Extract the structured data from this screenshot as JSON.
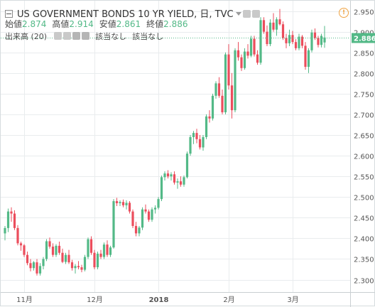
{
  "header": {
    "symbol": "US GOVERNMENT BONDS 10 YR YIELD, 日, TVC",
    "ohlc": [
      {
        "label": "始値",
        "value": "2.874"
      },
      {
        "label": "高値",
        "value": "2.914"
      },
      {
        "label": "安値",
        "value": "2.861"
      },
      {
        "label": "終値",
        "value": "2.886"
      }
    ],
    "volume_label": "出来高 (20)",
    "na1": "該当なし",
    "na2": "該当なし",
    "warning_icon": "!"
  },
  "colors": {
    "up": "#53b987",
    "down": "#eb4d5c",
    "grid": "#e9ecee",
    "last_price_line": "#53b987"
  },
  "chart_data": {
    "type": "candlestick",
    "title": "US GOVERNMENT BONDS 10 YR YIELD, 日, TVC",
    "y_ticks": [
      "2.300",
      "2.350",
      "2.400",
      "2.450",
      "2.500",
      "2.550",
      "2.600",
      "2.650",
      "2.700",
      "2.750",
      "2.800",
      "2.850",
      "2.900",
      "2.950"
    ],
    "x_ticks": [
      {
        "label": "11月",
        "index": 6
      },
      {
        "label": "12月",
        "index": 28
      },
      {
        "label": "2018",
        "index": 48
      },
      {
        "label": "2月",
        "index": 70
      },
      {
        "label": "3月",
        "index": 90
      }
    ],
    "last_value": "2.886",
    "ylim": [
      2.27,
      2.975
    ],
    "candles": [
      [
        2.412,
        2.43,
        2.395,
        2.425
      ],
      [
        2.425,
        2.472,
        2.415,
        2.465
      ],
      [
        2.465,
        2.475,
        2.44,
        2.46
      ],
      [
        2.46,
        2.468,
        2.42,
        2.425
      ],
      [
        2.425,
        2.432,
        2.383,
        2.388
      ],
      [
        2.388,
        2.392,
        2.37,
        2.383
      ],
      [
        2.383,
        2.386,
        2.355,
        2.36
      ],
      [
        2.36,
        2.368,
        2.335,
        2.34
      ],
      [
        2.34,
        2.35,
        2.32,
        2.328
      ],
      [
        2.328,
        2.345,
        2.322,
        2.342
      ],
      [
        2.342,
        2.35,
        2.31,
        2.315
      ],
      [
        2.315,
        2.34,
        2.31,
        2.333
      ],
      [
        2.333,
        2.355,
        2.325,
        2.35
      ],
      [
        2.35,
        2.398,
        2.345,
        2.393
      ],
      [
        2.393,
        2.402,
        2.375,
        2.38
      ],
      [
        2.38,
        2.388,
        2.355,
        2.36
      ],
      [
        2.36,
        2.386,
        2.355,
        2.382
      ],
      [
        2.382,
        2.392,
        2.36,
        2.365
      ],
      [
        2.365,
        2.375,
        2.34,
        2.343
      ],
      [
        2.343,
        2.365,
        2.338,
        2.36
      ],
      [
        2.36,
        2.372,
        2.338,
        2.342
      ],
      [
        2.342,
        2.348,
        2.322,
        2.328
      ],
      [
        2.328,
        2.338,
        2.315,
        2.333
      ],
      [
        2.333,
        2.345,
        2.325,
        2.33
      ],
      [
        2.33,
        2.336,
        2.318,
        2.324
      ],
      [
        2.324,
        2.36,
        2.32,
        2.355
      ],
      [
        2.355,
        2.402,
        2.35,
        2.398
      ],
      [
        2.398,
        2.405,
        2.36,
        2.365
      ],
      [
        2.365,
        2.372,
        2.325,
        2.33
      ],
      [
        2.33,
        2.368,
        2.325,
        2.363
      ],
      [
        2.363,
        2.372,
        2.35,
        2.355
      ],
      [
        2.355,
        2.39,
        2.35,
        2.385
      ],
      [
        2.385,
        2.395,
        2.355,
        2.36
      ],
      [
        2.36,
        2.382,
        2.355,
        2.378
      ],
      [
        2.378,
        2.495,
        2.375,
        2.49
      ],
      [
        2.49,
        2.498,
        2.478,
        2.485
      ],
      [
        2.485,
        2.492,
        2.478,
        2.488
      ],
      [
        2.488,
        2.494,
        2.475,
        2.48
      ],
      [
        2.48,
        2.492,
        2.47,
        2.486
      ],
      [
        2.486,
        2.49,
        2.46,
        2.465
      ],
      [
        2.465,
        2.47,
        2.425,
        2.43
      ],
      [
        2.43,
        2.44,
        2.405,
        2.412
      ],
      [
        2.412,
        2.43,
        2.405,
        2.426
      ],
      [
        2.426,
        2.475,
        2.42,
        2.47
      ],
      [
        2.47,
        2.482,
        2.46,
        2.465
      ],
      [
        2.465,
        2.47,
        2.44,
        2.445
      ],
      [
        2.445,
        2.475,
        2.44,
        2.47
      ],
      [
        2.47,
        2.48,
        2.46,
        2.474
      ],
      [
        2.474,
        2.5,
        2.47,
        2.495
      ],
      [
        2.495,
        2.552,
        2.49,
        2.548
      ],
      [
        2.548,
        2.562,
        2.54,
        2.557
      ],
      [
        2.557,
        2.565,
        2.545,
        2.55
      ],
      [
        2.55,
        2.56,
        2.54,
        2.555
      ],
      [
        2.555,
        2.562,
        2.53,
        2.535
      ],
      [
        2.535,
        2.545,
        2.52,
        2.538
      ],
      [
        2.538,
        2.55,
        2.525,
        2.53
      ],
      [
        2.53,
        2.552,
        2.525,
        2.548
      ],
      [
        2.548,
        2.61,
        2.545,
        2.605
      ],
      [
        2.605,
        2.65,
        2.6,
        2.645
      ],
      [
        2.645,
        2.66,
        2.628,
        2.655
      ],
      [
        2.655,
        2.665,
        2.63,
        2.64
      ],
      [
        2.64,
        2.65,
        2.615,
        2.62
      ],
      [
        2.62,
        2.65,
        2.612,
        2.645
      ],
      [
        2.645,
        2.7,
        2.64,
        2.695
      ],
      [
        2.695,
        2.71,
        2.68,
        2.69
      ],
      [
        2.69,
        2.75,
        2.685,
        2.745
      ],
      [
        2.745,
        2.78,
        2.738,
        2.775
      ],
      [
        2.775,
        2.79,
        2.74,
        2.745
      ],
      [
        2.745,
        2.76,
        2.7,
        2.705
      ],
      [
        2.705,
        2.85,
        2.7,
        2.845
      ],
      [
        2.845,
        2.87,
        2.76,
        2.77
      ],
      [
        2.77,
        2.8,
        2.69,
        2.71
      ],
      [
        2.71,
        2.86,
        2.705,
        2.855
      ],
      [
        2.855,
        2.875,
        2.83,
        2.838
      ],
      [
        2.838,
        2.845,
        2.805,
        2.812
      ],
      [
        2.812,
        2.86,
        2.808,
        2.852
      ],
      [
        2.852,
        2.87,
        2.835,
        2.842
      ],
      [
        2.842,
        2.89,
        2.838,
        2.883
      ],
      [
        2.883,
        2.89,
        2.84,
        2.845
      ],
      [
        2.845,
        2.855,
        2.82,
        2.825
      ],
      [
        2.825,
        2.935,
        2.82,
        2.928
      ],
      [
        2.928,
        2.935,
        2.895,
        2.9
      ],
      [
        2.9,
        2.915,
        2.865,
        2.87
      ],
      [
        2.87,
        2.93,
        2.865,
        2.922
      ],
      [
        2.922,
        2.945,
        2.9,
        2.905
      ],
      [
        2.905,
        2.935,
        2.89,
        2.93
      ],
      [
        2.93,
        2.955,
        2.915,
        2.918
      ],
      [
        2.918,
        2.925,
        2.88,
        2.885
      ],
      [
        2.885,
        2.895,
        2.86,
        2.872
      ],
      [
        2.872,
        2.905,
        2.865,
        2.892
      ],
      [
        2.892,
        2.902,
        2.87,
        2.875
      ],
      [
        2.875,
        2.882,
        2.855,
        2.86
      ],
      [
        2.86,
        2.895,
        2.855,
        2.888
      ],
      [
        2.888,
        2.892,
        2.86,
        2.866
      ],
      [
        2.866,
        2.875,
        2.808,
        2.815
      ],
      [
        2.815,
        2.86,
        2.8,
        2.855
      ],
      [
        2.855,
        2.905,
        2.85,
        2.898
      ],
      [
        2.898,
        2.908,
        2.88,
        2.885
      ],
      [
        2.885,
        2.89,
        2.862,
        2.868
      ],
      [
        2.868,
        2.895,
        2.862,
        2.89
      ],
      [
        2.874,
        2.914,
        2.861,
        2.886
      ]
    ]
  }
}
